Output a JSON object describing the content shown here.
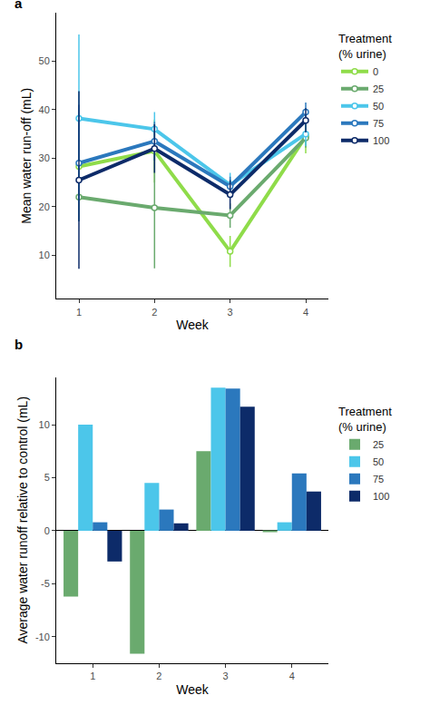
{
  "chart_data": [
    {
      "type": "line",
      "title": "a",
      "x_label": "Week",
      "y_label": "Mean water run-off (mL)",
      "legend_title": "Treatment\n(% urine)",
      "legend": "right",
      "grid": false,
      "x": [
        1,
        2,
        3,
        4
      ],
      "xlim": [
        0.7,
        4.3
      ],
      "xticks": [
        1,
        2,
        3,
        4
      ],
      "ylim": [
        1,
        60
      ],
      "yticks": [
        10,
        20,
        30,
        40,
        50
      ],
      "series": [
        {
          "name": "0",
          "color": "#8fdc4a",
          "marker": "circle",
          "line_style": "solid",
          "values": [
            28.3,
            31.5,
            10.8,
            34.5
          ],
          "error": [
            11.2,
            6.5,
            3.2,
            3.5
          ]
        },
        {
          "name": "25",
          "color": "#6aaa6e",
          "marker": "circle",
          "line_style": "solid",
          "values": [
            22,
            19.8,
            18.2,
            34.2
          ],
          "error": [
            5,
            12.5,
            2.5,
            2
          ]
        },
        {
          "name": "50",
          "color": "#4cc6ea",
          "marker": "circle",
          "line_style": "solid",
          "values": [
            38.2,
            36,
            24.5,
            35
          ],
          "error": [
            17.3,
            3.5,
            2.5,
            2.5
          ]
        },
        {
          "name": "75",
          "color": "#2b78bd",
          "marker": "circle",
          "line_style": "solid",
          "values": [
            29,
            33.5,
            24.2,
            39.5
          ],
          "error": [
            12,
            4,
            2,
            2
          ]
        },
        {
          "name": "100",
          "color": "#0d2b69",
          "marker": "circle",
          "line_style": "solid",
          "values": [
            25.5,
            32,
            22.5,
            37.8
          ],
          "error": [
            18.3,
            5,
            3,
            2.5
          ]
        }
      ]
    },
    {
      "type": "bar",
      "title": "b",
      "x_label": "Week",
      "y_label": "Average water runoff relative to control (mL)",
      "legend_title": "Treatment\n(% urine)",
      "legend": "right",
      "grid": false,
      "x": [
        1,
        2,
        3,
        4
      ],
      "xlim": [
        0.45,
        4.55
      ],
      "xticks": [
        1,
        2,
        3,
        4
      ],
      "ylim": [
        -12.5,
        14.5
      ],
      "yticks": [
        -10,
        -5,
        0,
        5,
        10
      ],
      "series": [
        {
          "name": "25",
          "color": "#6aaa6e",
          "values": [
            -6.2,
            -11.6,
            7.5,
            -0.1
          ]
        },
        {
          "name": "50",
          "color": "#4cc6ea",
          "values": [
            10,
            4.5,
            13.5,
            0.8
          ]
        },
        {
          "name": "75",
          "color": "#2b78bd",
          "values": [
            0.8,
            2,
            13.4,
            5.4
          ]
        },
        {
          "name": "100",
          "color": "#0d2b69",
          "values": [
            -2.9,
            0.7,
            11.7,
            3.7
          ]
        }
      ]
    }
  ]
}
